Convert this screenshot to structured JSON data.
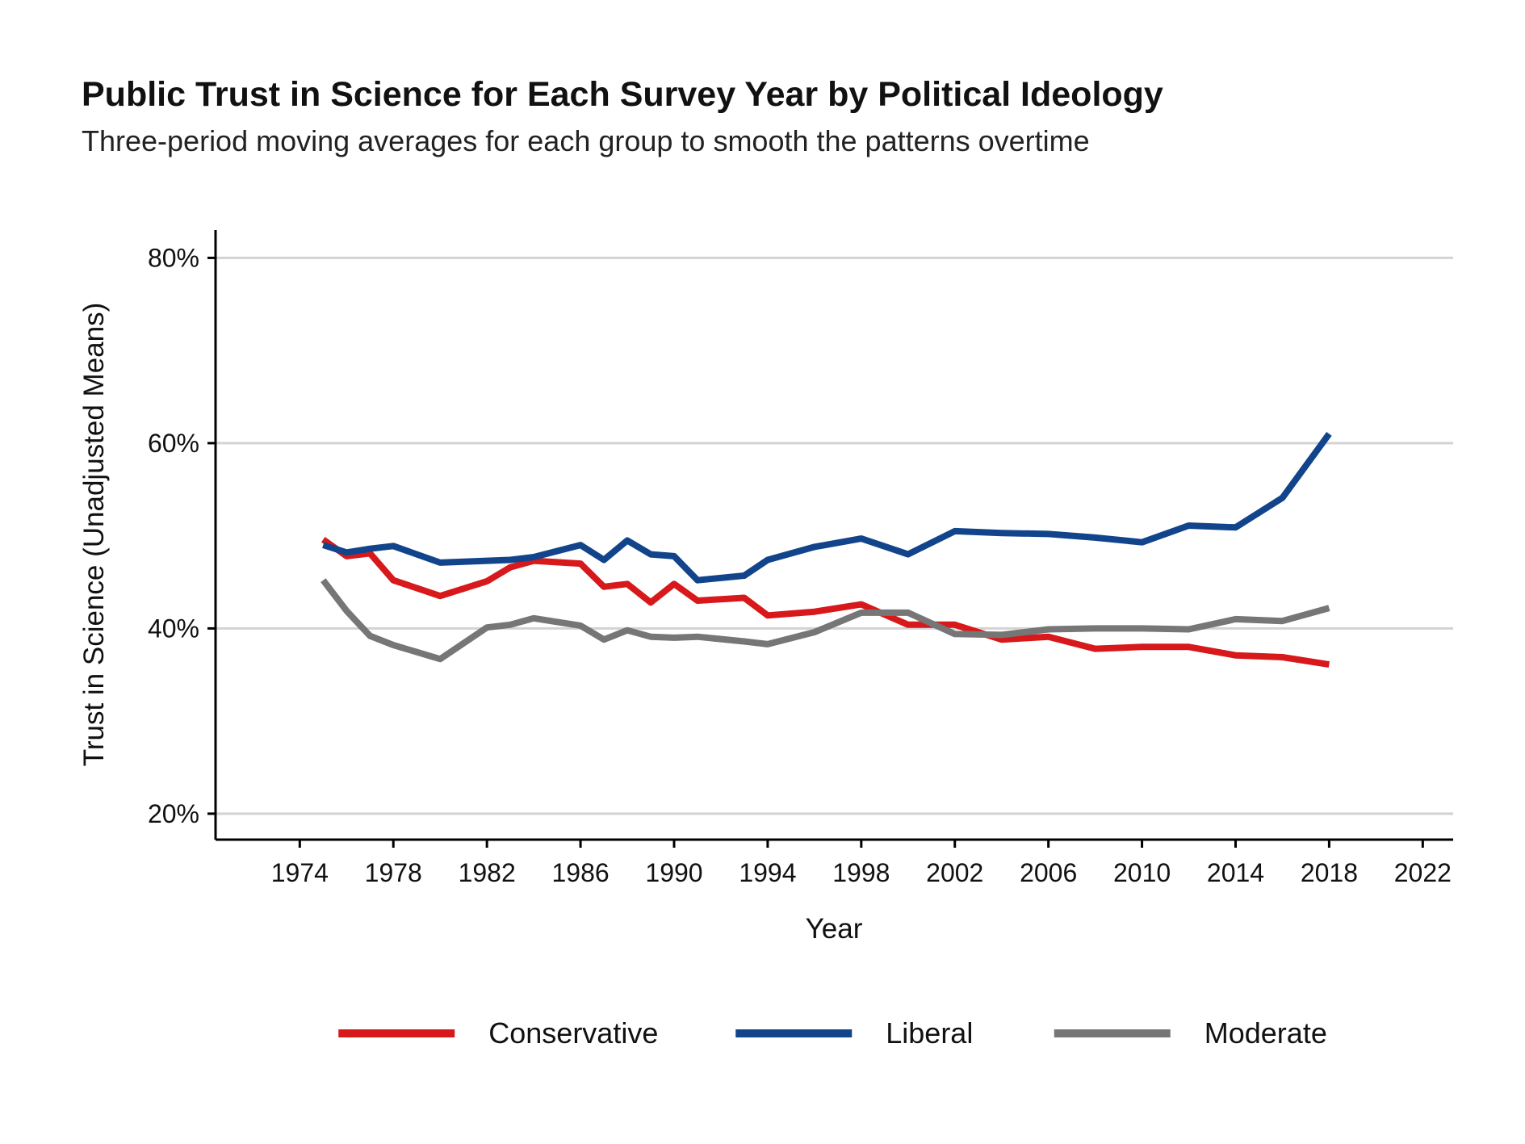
{
  "chart_data": {
    "type": "line",
    "title": "Public Trust in Science for Each Survey Year by Political Ideology",
    "subtitle": "Three-period moving averages for each group to smooth the patterns overtime",
    "xlabel": "Year",
    "ylabel": "Trust in Science (Unadjusted Means)",
    "xlim": [
      1970.4,
      2023.3
    ],
    "ylim": [
      17.2,
      83
    ],
    "x_ticks": [
      1974,
      1978,
      1982,
      1986,
      1990,
      1994,
      1998,
      2002,
      2006,
      2010,
      2014,
      2018,
      2022
    ],
    "x_tick_labels": [
      "1974",
      "1978",
      "1982",
      "1986",
      "1990",
      "1994",
      "1998",
      "2002",
      "2006",
      "2010",
      "2014",
      "2018",
      "2022"
    ],
    "y_ticks": [
      20,
      40,
      60,
      80
    ],
    "y_tick_labels": [
      "20%",
      "40%",
      "60%",
      "80%"
    ],
    "grid": "horizontal",
    "legend_position": "bottom",
    "x": [
      1975,
      1976,
      1977,
      1978,
      1980,
      1982,
      1983,
      1984,
      1986,
      1987,
      1988,
      1989,
      1990,
      1991,
      1993,
      1994,
      1996,
      1998,
      2000,
      2002,
      2004,
      2006,
      2008,
      2010,
      2012,
      2014,
      2016,
      2018
    ],
    "series": [
      {
        "name": "Conservative",
        "color": "#d7191c",
        "values": [
          49.6,
          47.8,
          48.1,
          45.2,
          43.5,
          45.1,
          46.6,
          47.3,
          47.0,
          44.5,
          44.8,
          42.8,
          44.8,
          43.0,
          43.3,
          41.4,
          41.8,
          42.6,
          40.4,
          40.4,
          38.8,
          39.1,
          37.8,
          38.0,
          38.0,
          37.1,
          36.9,
          36.1
        ]
      },
      {
        "name": "Liberal",
        "color": "#12448c",
        "values": [
          49.0,
          48.2,
          48.6,
          48.9,
          47.1,
          47.3,
          47.4,
          47.7,
          49.0,
          47.4,
          49.5,
          48.0,
          47.8,
          45.2,
          45.7,
          47.4,
          48.8,
          49.7,
          48.0,
          50.5,
          50.3,
          50.2,
          49.8,
          49.3,
          51.1,
          50.9,
          54.1,
          61.0
        ]
      },
      {
        "name": "Moderate",
        "color": "#767676",
        "values": [
          45.2,
          41.9,
          39.2,
          38.2,
          36.7,
          40.1,
          40.4,
          41.1,
          40.3,
          38.8,
          39.8,
          39.1,
          39.0,
          39.1,
          38.6,
          38.3,
          39.6,
          41.7,
          41.7,
          39.4,
          39.3,
          39.9,
          40.0,
          40.0,
          39.9,
          41.0,
          40.8,
          42.2
        ]
      }
    ]
  }
}
